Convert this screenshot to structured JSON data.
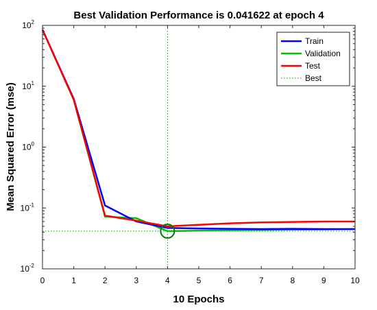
{
  "chart_data": {
    "type": "line",
    "title": "Best Validation Performance is 0.041622 at epoch 4",
    "xlabel": "10 Epochs",
    "ylabel": "Mean Squared Error  (mse)",
    "xlim": [
      0,
      10
    ],
    "ylim": [
      0.01,
      100
    ],
    "yscale": "log",
    "x_ticks": [
      "0",
      "1",
      "2",
      "3",
      "4",
      "5",
      "6",
      "7",
      "8",
      "9",
      "10"
    ],
    "y_ticks": [
      {
        "base": "10",
        "exp": "-2",
        "value": 0.01
      },
      {
        "base": "10",
        "exp": "-1",
        "value": 0.1
      },
      {
        "base": "10",
        "exp": "0",
        "value": 1
      },
      {
        "base": "10",
        "exp": "1",
        "value": 10
      },
      {
        "base": "10",
        "exp": "2",
        "value": 100
      }
    ],
    "x": [
      0,
      1,
      2,
      3,
      4,
      5,
      6,
      7,
      8,
      9,
      10
    ],
    "series": [
      {
        "name": "Train",
        "color": "#0000ff",
        "values": [
          85,
          6.2,
          0.11,
          0.06,
          0.047,
          0.046,
          0.0455,
          0.045,
          0.0455,
          0.045,
          0.045
        ]
      },
      {
        "name": "Validation",
        "color": "#00c000",
        "values": [
          85,
          6.0,
          0.072,
          0.068,
          0.041622,
          0.0425,
          0.043,
          0.0435,
          0.044,
          0.0445,
          0.045
        ]
      },
      {
        "name": "Test",
        "color": "#ff0000",
        "values": [
          85,
          6.0,
          0.075,
          0.062,
          0.05,
          0.053,
          0.056,
          0.058,
          0.059,
          0.06,
          0.06
        ]
      }
    ],
    "best": {
      "name": "Best",
      "epoch": 4,
      "value": 0.041622,
      "color": "#00a000"
    },
    "legend_position": "top-right",
    "grid": false
  }
}
